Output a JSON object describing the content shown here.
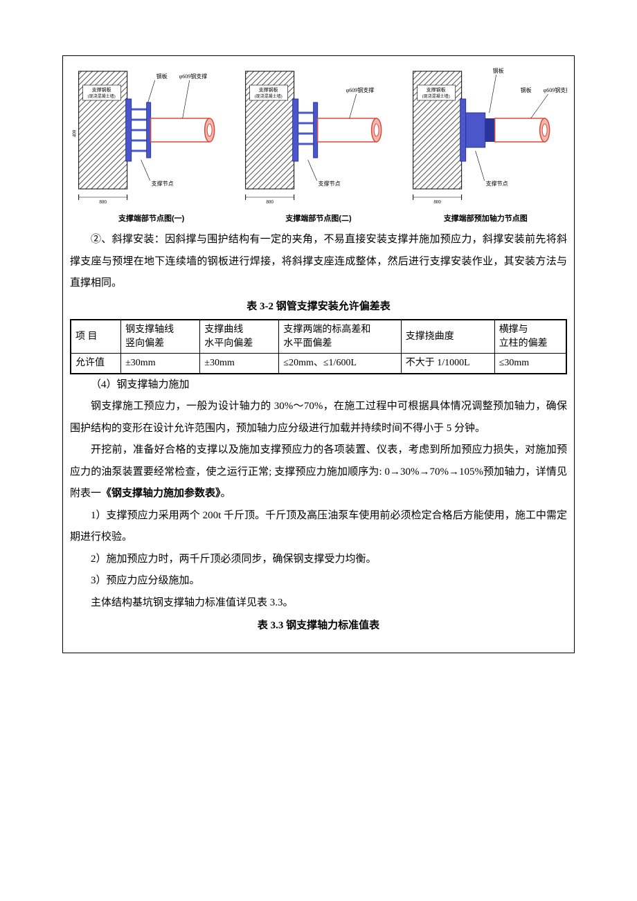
{
  "diagrams": {
    "label_pipe": "φ609钢支撑",
    "label_plate": "钢板",
    "label_wall_a": "支撑钢板",
    "label_wall_b": "(现浇混凝土墙)",
    "label_support": "支撑节点",
    "label_extra": "钢板",
    "dim_800": "800",
    "dim_h": "400",
    "caption1": "支撑端部节点图(一)",
    "caption2": "支撑端部节点图(二)",
    "caption3": "支撑端部预加轴力节点图",
    "colors": {
      "hatch": "#333333",
      "plate": "#4a56c9",
      "pipe_outline": "#d84a3a",
      "pipe_fill": "#f7b7ae",
      "dim_text": "#000000"
    }
  },
  "para_diagonal": "②、斜撑安装：因斜撑与围护结构有一定的夹角，不易直接安装支撑并施加预应力，斜撑安装前先将斜撑支座与预埋在地下连续墙的钢板进行焊接，将斜撑支座连成整体，然后进行支撑安装作业，其安装方法与直撑相同。",
  "table32": {
    "caption": "表 3-2 钢管支撑安装允许偏差表",
    "headers": [
      "项  目",
      "钢支撑轴线\n竖向偏差",
      "支撑曲线\n水平向偏差",
      "支撑两端的标高差和\n水平面偏差",
      "支撑挠曲度",
      "横撑与\n立柱的偏差"
    ],
    "row_label": "允许值",
    "values": [
      "±30mm",
      "±30mm",
      "≤20mm、≤1/600L",
      "不大于 1/1000L",
      "≤30mm"
    ],
    "col_widths": [
      "70px",
      "110px",
      "110px",
      "170px",
      "130px",
      "100px"
    ]
  },
  "section4_title": "（4）钢支撑轴力施加",
  "para_axial1": "钢支撑施工预应力，一般为设计轴力的 30%～70%，在施工过程中可根据具体情况调整预加轴力，确保围护结构的变形在设计允许范围内，预加轴力应分级进行加载并持续时间不得小于 5 分钟。",
  "para_axial2_a": "开挖前，准备好合格的支撑以及施加支撑预应力的各项装置、仪表，考虑到所加预应力损失，对施加预应力的油泵装置要经常检查，使之运行正常; 支撑预应力施加顺序为: 0→30%→70%→105%预加轴力，详情见附表一",
  "para_axial2_bold": "《钢支撑轴力施加参数表》",
  "para_axial2_b": "。",
  "para_li1": "1）支撑预应力采用两个 200t 千斤顶。千斤顶及高压油泵车使用前必须检定合格后方能使用，施工中需定期进行校验。",
  "para_li2": "2）施加预应力时，两千斤顶必须同步，确保钢支撑受力均衡。",
  "para_li3": "3）预应力应分级施加。",
  "para_main_ref": "主体结构基坑钢支撑轴力标准值详见表 3.3。",
  "table33_caption": "表 3.3 钢支撑轴力标准值表"
}
